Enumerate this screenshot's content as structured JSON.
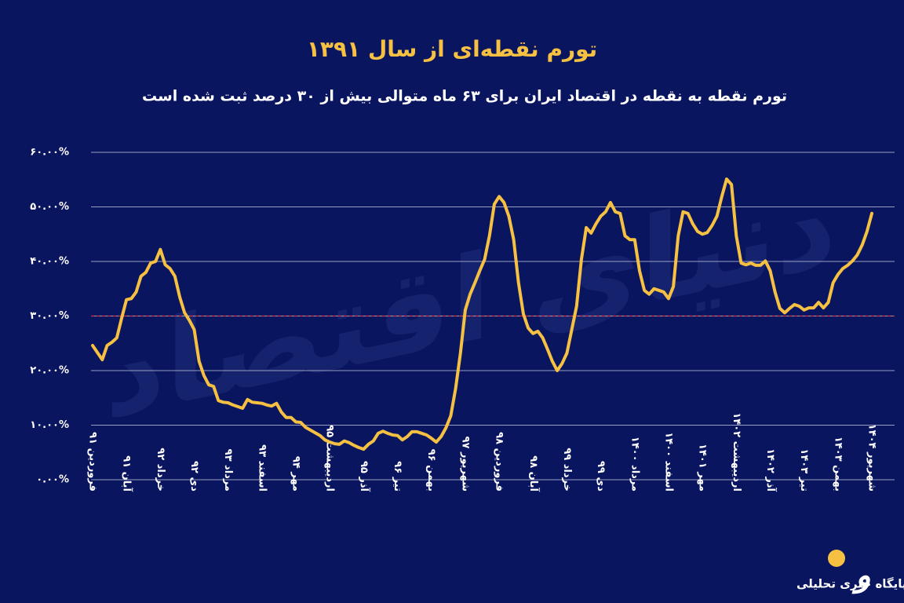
{
  "chart_data": {
    "type": "line",
    "title": "تورم نقطه‌ای از سال ۱۳۹۱",
    "subtitle": "تورم نقطه به نقطه در اقتصاد ایران برای ۶۳ ماه متوالی بیش از ۳۰ درصد ثبت شده است",
    "watermark": "دنیای اقتصاد",
    "source": "پایگاه خبری تحلیلی",
    "color": "#f6c142",
    "grid": true,
    "reference_line": {
      "value": 30,
      "color": "#e0303a"
    },
    "ylim": [
      0,
      60
    ],
    "yticks": [
      {
        "value": 0,
        "label": "۰.۰۰%"
      },
      {
        "value": 10,
        "label": "۱۰.۰۰%"
      },
      {
        "value": 20,
        "label": "۲۰.۰۰%"
      },
      {
        "value": 30,
        "label": "۳۰.۰۰%"
      },
      {
        "value": 40,
        "label": "۴۰.۰۰%"
      },
      {
        "value": 50,
        "label": "۵۰.۰۰%"
      },
      {
        "value": 60,
        "label": "۶۰.۰۰%"
      }
    ],
    "categories": [
      "فروردین ۹۱",
      null,
      null,
      null,
      null,
      null,
      null,
      "آبان ۹۱",
      null,
      null,
      null,
      null,
      null,
      null,
      "خرداد ۹۲",
      null,
      null,
      null,
      null,
      null,
      null,
      "دی ۹۲",
      null,
      null,
      null,
      null,
      null,
      null,
      "مرداد ۹۳",
      null,
      null,
      null,
      null,
      null,
      null,
      "اسفند ۹۳",
      null,
      null,
      null,
      null,
      null,
      null,
      "مهر ۹۴",
      null,
      null,
      null,
      null,
      null,
      null,
      "اردیبهشت ۹۵",
      null,
      null,
      null,
      null,
      null,
      null,
      "آذر ۹۵",
      null,
      null,
      null,
      null,
      null,
      null,
      "تیر ۹۶",
      null,
      null,
      null,
      null,
      null,
      null,
      "بهمن ۹۶",
      null,
      null,
      null,
      null,
      null,
      null,
      "شهریور ۹۷",
      null,
      null,
      null,
      null,
      null,
      null,
      "فروردین ۹۸",
      null,
      null,
      null,
      null,
      null,
      null,
      "آبان ۹۸",
      null,
      null,
      null,
      null,
      null,
      null,
      "خرداد ۹۹",
      null,
      null,
      null,
      null,
      null,
      null,
      "دی ۹۹",
      null,
      null,
      null,
      null,
      null,
      null,
      "مرداد ۱۴۰۰",
      null,
      null,
      null,
      null,
      null,
      null,
      "اسفند ۱۴۰۰",
      null,
      null,
      null,
      null,
      null,
      null,
      "مهر ۱۴۰۱",
      null,
      null,
      null,
      null,
      null,
      null,
      "اردیبهشت ۱۴۰۲",
      null,
      null,
      null,
      null,
      null,
      null,
      "آذر ۱۴۰۲",
      null,
      null,
      null,
      null,
      null,
      null,
      "تیر ۱۴۰۳",
      null,
      null,
      null,
      null,
      null,
      null,
      "بهمن ۱۴۰۳",
      null,
      null,
      null,
      null,
      null,
      null,
      "شهریور ۱۴۰۴"
    ],
    "values": [
      24.6,
      23.3,
      22.0,
      24.6,
      25.2,
      26.0,
      29.6,
      33.0,
      33.2,
      34.4,
      37.3,
      38.0,
      39.7,
      40.0,
      42.2,
      39.4,
      38.7,
      37.3,
      33.5,
      30.6,
      29.2,
      27.5,
      21.7,
      19.1,
      17.4,
      17.1,
      14.5,
      14.2,
      14.1,
      13.7,
      13.4,
      13.1,
      14.7,
      14.2,
      14.1,
      14.0,
      13.7,
      13.5,
      14.0,
      12.4,
      11.4,
      11.4,
      10.6,
      10.5,
      9.6,
      9.1,
      8.6,
      8.1,
      7.3,
      6.9,
      6.6,
      6.5,
      7.1,
      6.8,
      6.3,
      5.9,
      5.6,
      6.5,
      7.1,
      8.5,
      8.9,
      8.5,
      8.2,
      8.1,
      7.3,
      7.9,
      8.8,
      8.8,
      8.5,
      8.2,
      7.6,
      6.9,
      7.9,
      9.5,
      11.7,
      16.7,
      23.2,
      31.1,
      34.0,
      36.1,
      38.3,
      40.4,
      44.7,
      50.5,
      51.9,
      50.8,
      48.3,
      44.0,
      36.1,
      30.4,
      27.8,
      26.8,
      27.2,
      26.0,
      23.9,
      21.7,
      20.0,
      21.3,
      23.2,
      27.5,
      31.8,
      40.4,
      46.2,
      45.2,
      46.9,
      48.3,
      49.1,
      50.8,
      49.1,
      48.8,
      44.7,
      44.0,
      44.0,
      38.3,
      34.7,
      34.0,
      35.0,
      34.7,
      34.4,
      33.2,
      35.4,
      44.7,
      49.1,
      48.8,
      46.9,
      45.5,
      45.0,
      45.3,
      46.6,
      48.3,
      51.9,
      55.1,
      54.1,
      44.7,
      39.7,
      39.4,
      39.7,
      39.3,
      39.3,
      40.1,
      38.3,
      34.4,
      31.4,
      30.6,
      31.4,
      32.1,
      31.8,
      31.1,
      31.5,
      31.5,
      32.5,
      31.5,
      32.5,
      36.1,
      37.6,
      38.7,
      39.3,
      40.1,
      41.2,
      43.0,
      45.5,
      48.8
    ]
  }
}
